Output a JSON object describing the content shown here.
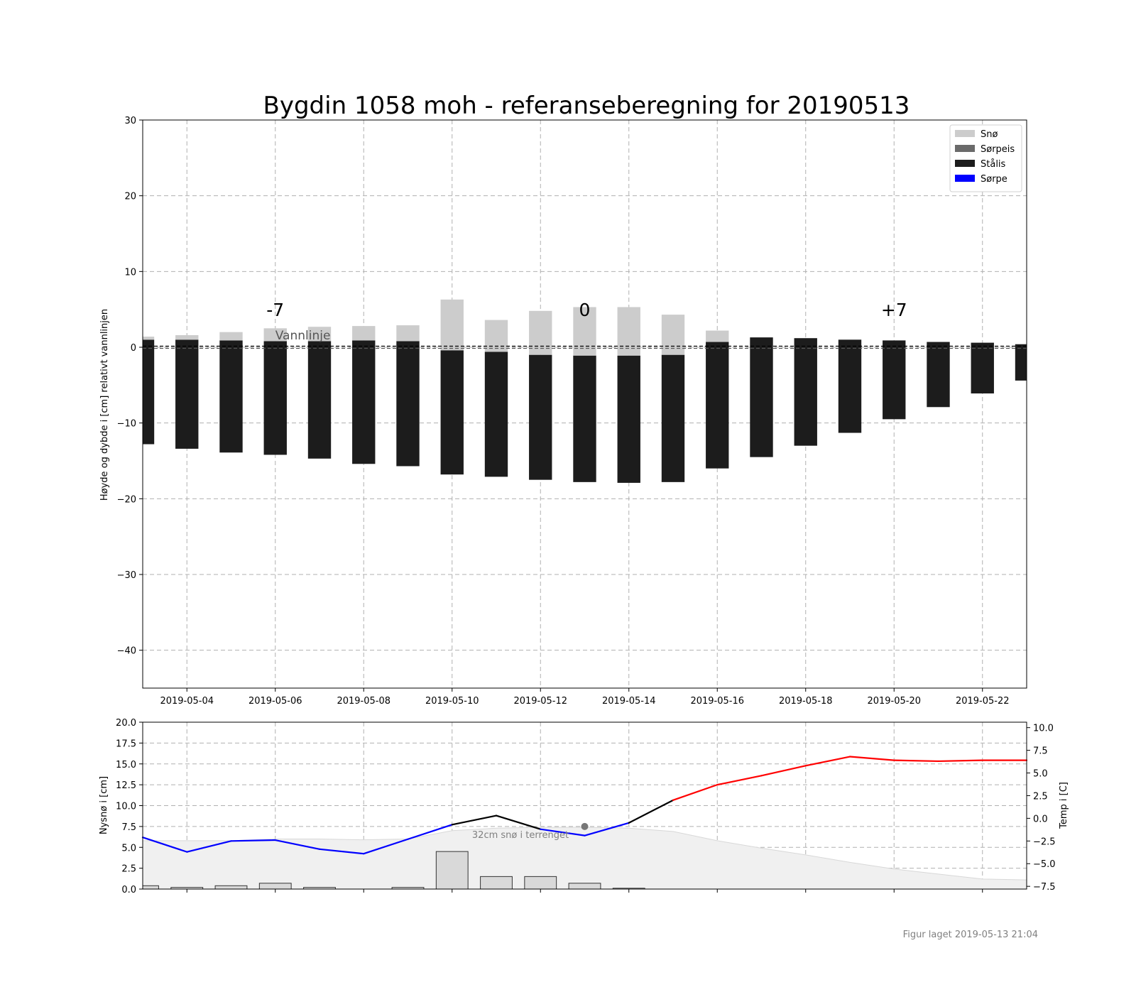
{
  "title": "Bygdin 1058 moh - referanseberegning for 20190513",
  "footer": "Figur laget 2019-05-13 21:04",
  "chart_data": [
    {
      "type": "bar",
      "subtype": "stacked",
      "ylabel": "Høyde og dybde i [cm] relativt vannlinjen",
      "ylim": [
        -45,
        30
      ],
      "yticks": [
        30,
        20,
        10,
        0,
        -10,
        -20,
        -30,
        -40
      ],
      "ytick_labels": [
        "30",
        "20",
        "10",
        "0",
        "−10",
        "−20",
        "−30",
        "−40"
      ],
      "x_range": [
        "2019-05-03",
        "2019-05-23"
      ],
      "xticks": [
        "2019-05-04",
        "2019-05-06",
        "2019-05-08",
        "2019-05-10",
        "2019-05-12",
        "2019-05-14",
        "2019-05-16",
        "2019-05-18",
        "2019-05-20",
        "2019-05-22"
      ],
      "grid": true,
      "legend_position": "top-right",
      "legend": [
        {
          "label": "Snø",
          "color": "#cccccc"
        },
        {
          "label": "Sørpeis",
          "color": "#6a6a6a"
        },
        {
          "label": "Stålis",
          "color": "#1c1c1c"
        },
        {
          "label": "Sørpe",
          "color": "#0000ff"
        }
      ],
      "waterline_label": "Vannlinje",
      "day_markers": [
        {
          "date": "2019-05-06",
          "label": "-7"
        },
        {
          "date": "2019-05-13",
          "label": "0"
        },
        {
          "date": "2019-05-20",
          "label": "+7"
        }
      ],
      "dates": [
        "2019-05-03",
        "2019-05-04",
        "2019-05-05",
        "2019-05-06",
        "2019-05-07",
        "2019-05-08",
        "2019-05-09",
        "2019-05-10",
        "2019-05-11",
        "2019-05-12",
        "2019-05-13",
        "2019-05-14",
        "2019-05-15",
        "2019-05-16",
        "2019-05-17",
        "2019-05-18",
        "2019-05-19",
        "2019-05-20",
        "2019-05-21",
        "2019-05-22",
        "2019-05-23"
      ],
      "series": [
        {
          "name": "Stålis",
          "top": [
            1.0,
            1.0,
            0.9,
            0.8,
            0.8,
            0.9,
            0.8,
            -0.4,
            -0.6,
            -1.0,
            -1.1,
            -1.1,
            -1.0,
            0.7,
            1.3,
            1.2,
            1.0,
            0.9,
            0.7,
            0.6,
            0.4
          ],
          "bottom": [
            -12.8,
            -13.4,
            -13.9,
            -14.2,
            -14.7,
            -15.4,
            -15.7,
            -16.8,
            -17.1,
            -17.5,
            -17.8,
            -17.9,
            -17.8,
            -16.0,
            -14.5,
            -13.0,
            -11.3,
            -9.5,
            -7.9,
            -6.1,
            -4.4
          ]
        },
        {
          "name": "Snø",
          "top": [
            1.4,
            1.6,
            2.0,
            2.5,
            2.7,
            2.8,
            2.9,
            6.3,
            3.6,
            4.8,
            5.3,
            5.3,
            4.3,
            2.2,
            1.3,
            1.2,
            1.0,
            0.9,
            0.7,
            0.6,
            0.4
          ],
          "bottom": [
            1.0,
            1.0,
            0.9,
            0.8,
            0.8,
            0.9,
            0.8,
            -0.4,
            -0.6,
            -1.0,
            -1.1,
            -1.1,
            -1.0,
            0.7,
            1.3,
            1.2,
            1.0,
            0.9,
            0.7,
            0.6,
            0.4
          ]
        }
      ]
    },
    {
      "type": "bar",
      "ylabel": "Nysnø i [cm]",
      "ylim": [
        0,
        20
      ],
      "yticks": [
        0,
        2.5,
        5,
        7.5,
        10,
        12.5,
        15,
        17.5,
        20
      ],
      "ytick_labels": [
        "0.0",
        "2.5",
        "5.0",
        "7.5",
        "10.0",
        "12.5",
        "15.0",
        "17.5",
        "20.0"
      ],
      "grid": true,
      "dates": [
        "2019-05-03",
        "2019-05-04",
        "2019-05-05",
        "2019-05-06",
        "2019-05-07",
        "2019-05-08",
        "2019-05-09",
        "2019-05-10",
        "2019-05-11",
        "2019-05-12",
        "2019-05-13",
        "2019-05-14",
        "2019-05-15",
        "2019-05-16",
        "2019-05-17",
        "2019-05-18",
        "2019-05-19",
        "2019-05-20",
        "2019-05-21",
        "2019-05-22",
        "2019-05-23"
      ],
      "new_snow": [
        0.4,
        0.2,
        0.4,
        0.7,
        0.2,
        0.0,
        0.2,
        4.5,
        1.5,
        1.5,
        0.7,
        0.1,
        0.0,
        0.0,
        0.0,
        0.0,
        0.0,
        0.0,
        0.0,
        0.0,
        0.0
      ],
      "terrain_snow": [
        5.8,
        5.8,
        5.8,
        6.0,
        6.0,
        5.9,
        6.0,
        7.0,
        7.3,
        7.4,
        7.4,
        7.3,
        6.9,
        5.8,
        4.9,
        4.1,
        3.2,
        2.4,
        1.8,
        1.2,
        1.1
      ],
      "terrain_label": "32cm snø i terrenget",
      "reference_point": {
        "date": "2019-05-13",
        "value": 7.5
      },
      "secondary_axis": {
        "ylabel": "Temp i [C]",
        "ylim": [
          -7.8,
          10.6
        ],
        "yticks": [
          -7.5,
          -5,
          -2.5,
          0,
          2.5,
          5,
          7.5,
          10
        ],
        "ytick_labels": [
          "−7.5",
          "−5.0",
          "−2.5",
          "0.0",
          "2.5",
          "5.0",
          "7.5",
          "10.0"
        ]
      },
      "temperature": {
        "type": "line",
        "values": [
          -2.1,
          -3.7,
          -2.5,
          -2.4,
          -3.4,
          -3.9,
          -2.3,
          -0.7,
          0.3,
          -1.2,
          -1.9,
          -0.5,
          2.0,
          3.7,
          4.7,
          5.8,
          6.8,
          6.4,
          6.3,
          6.4,
          6.4
        ],
        "colors": {
          "below_zero": "#0000ff",
          "around_zero": "#000000",
          "above_zero": "#ff0000"
        }
      }
    }
  ]
}
